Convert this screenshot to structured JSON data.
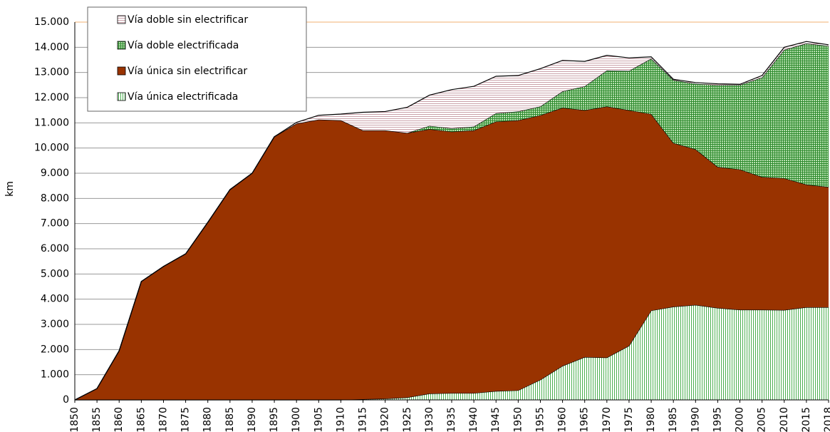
{
  "chart_data": {
    "type": "stacked-area",
    "y_label": "km",
    "categories": [
      "1850",
      "1855",
      "1860",
      "1865",
      "1870",
      "1875",
      "1880",
      "1885",
      "1890",
      "1895",
      "1900",
      "1905",
      "1910",
      "1915",
      "1920",
      "1925",
      "1930",
      "1935",
      "1940",
      "1945",
      "1950",
      "1955",
      "1960",
      "1965",
      "1970",
      "1975",
      "1980",
      "1985",
      "1990",
      "1995",
      "2000",
      "2005",
      "2010",
      "2015",
      "2018"
    ],
    "series": [
      {
        "name": "Vía única electrificada",
        "color": "#4caf50",
        "values": [
          0,
          0,
          0,
          0,
          0,
          0,
          0,
          0,
          0,
          0,
          0,
          0,
          0,
          30,
          50,
          100,
          250,
          270,
          270,
          350,
          380,
          800,
          1350,
          1700,
          1680,
          2150,
          3550,
          3700,
          3770,
          3650,
          3580,
          3580,
          3570,
          3680,
          3680
        ]
      },
      {
        "name": "Vía única sin electrificar",
        "color": "#993300",
        "values": [
          0,
          450,
          1950,
          4700,
          5300,
          5800,
          7050,
          8350,
          9000,
          10450,
          10970,
          11130,
          11100,
          10670,
          10650,
          10500,
          10500,
          10380,
          10430,
          10700,
          10720,
          10500,
          10250,
          9800,
          9970,
          9350,
          7800,
          6500,
          6180,
          5600,
          5570,
          5270,
          5230,
          4870,
          4770
        ]
      },
      {
        "name": "Vía doble electrificada",
        "color": "#2e8b2e",
        "values": [
          0,
          0,
          0,
          0,
          0,
          0,
          0,
          0,
          0,
          0,
          0,
          0,
          0,
          0,
          0,
          0,
          130,
          130,
          150,
          330,
          350,
          350,
          650,
          950,
          1430,
          1560,
          2200,
          2500,
          2600,
          3250,
          3350,
          3950,
          5100,
          5600,
          5600
        ]
      },
      {
        "name": "Vía doble sin electrificar",
        "color": "#c9a0a8",
        "values": [
          0,
          0,
          0,
          0,
          0,
          0,
          0,
          0,
          0,
          0,
          50,
          170,
          250,
          720,
          750,
          1020,
          1220,
          1540,
          1600,
          1470,
          1430,
          1500,
          1230,
          990,
          600,
          520,
          70,
          30,
          50,
          50,
          30,
          80,
          100,
          80,
          50
        ]
      }
    ],
    "ylim": [
      0,
      15000
    ],
    "yticks": [
      0,
      {
        "value": 1000,
        "label": "1.000"
      },
      {
        "value": 2000,
        "label": "2.000"
      },
      {
        "value": 3000,
        "label": "3.000"
      },
      {
        "value": 4000,
        "label": "4.000"
      },
      {
        "value": 5000,
        "label": "5.000"
      },
      {
        "value": 6000,
        "label": "6.000"
      },
      {
        "value": 7000,
        "label": "7.000"
      },
      {
        "value": 8000,
        "label": "8.000"
      },
      {
        "value": 9000,
        "label": "9.000"
      },
      {
        "value": 10000,
        "label": "10.000"
      },
      {
        "value": 11000,
        "label": "11.000"
      },
      {
        "value": 12000,
        "label": "12.000"
      },
      {
        "value": 13000,
        "label": "13.000"
      },
      {
        "value": 14000,
        "label": "14.000"
      },
      {
        "value": 15000,
        "label": "15.000"
      }
    ],
    "grid": true,
    "legend": "upper left"
  }
}
